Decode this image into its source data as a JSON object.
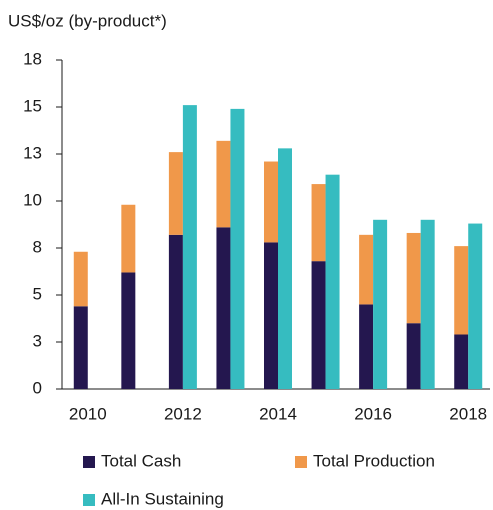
{
  "chart_data": {
    "type": "bar",
    "stacked": true,
    "title": "US$/oz (by-product*)",
    "categories": [
      "2010",
      null,
      "2012",
      null,
      "2014",
      null,
      "2016",
      null,
      "2018"
    ],
    "series": [
      {
        "name": "Total Cash",
        "color": "#24174f",
        "stack": "a",
        "values": [
          4.4,
          6.2,
          8.2,
          8.6,
          7.8,
          6.8,
          4.5,
          3.5,
          2.9
        ]
      },
      {
        "name": "Total Production",
        "color": "#f0984a",
        "stack": "a",
        "values": [
          2.9,
          3.6,
          4.4,
          4.6,
          4.3,
          4.1,
          3.7,
          4.8,
          4.7
        ]
      },
      {
        "name": "All-In Sustaining",
        "color": "#36bcc0",
        "stack": "b",
        "values": [
          null,
          null,
          15.1,
          14.9,
          12.8,
          11.4,
          9.0,
          9.0,
          8.8
        ]
      }
    ],
    "ylim": [
      0,
      17.5
    ],
    "yticks": [
      0,
      {
        "value": 2.5,
        "label": "3"
      },
      5,
      {
        "value": 7.5,
        "label": "8"
      },
      10,
      {
        "value": 12.5,
        "label": "13"
      },
      15,
      {
        "value": 17.5,
        "label": "18"
      }
    ]
  }
}
